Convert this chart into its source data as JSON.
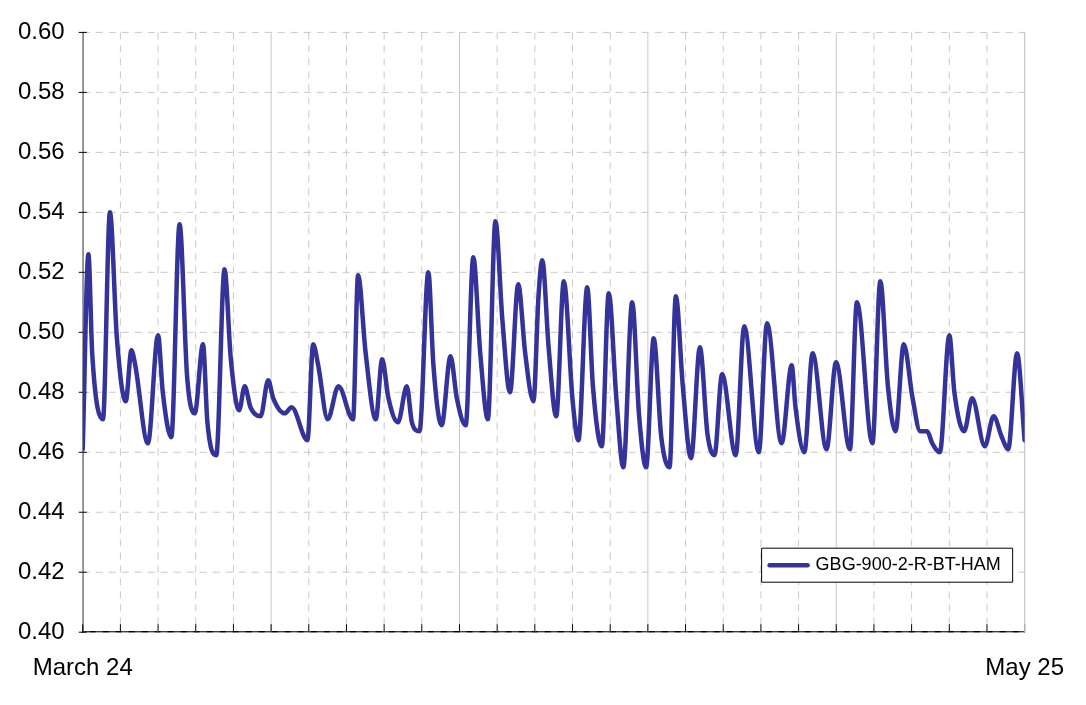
{
  "chart_data": {
    "type": "line",
    "x": [
      "--03-24T00:00",
      "--03-24T09:00",
      "--03-24T15:00",
      "--03-25T08:00",
      "--03-25T19:00",
      "--03-26T06:00",
      "--03-26T20:00",
      "--03-27T05:00",
      "--03-27T11:00",
      "--03-28T07:00",
      "--03-28T23:00",
      "--03-29T06:30",
      "--03-29T20:00",
      "--03-30T09:00",
      "--03-30T21:00",
      "--03-31T09:00",
      "--03-31T22:00",
      "--04-01T05:00",
      "--04-01T19:00",
      "--04-02T08:00",
      "--04-02T18:00",
      "--04-03T07:00",
      "--04-03T16:00",
      "--04-04T01:00",
      "--04-04T17:00",
      "--04-05T05:00",
      "--04-05T13:00",
      "--04-06T07:00",
      "--04-06T18:00",
      "--04-07T19:00",
      "--04-08T04:00",
      "--04-08T12:00",
      "--04-09T03:00",
      "--04-09T20:00",
      "--04-10T19:00",
      "--04-11T03:00",
      "--04-11T15:00",
      "--04-12T07:00",
      "--04-12T17:00",
      "--04-13T03:00",
      "--04-13T18:00",
      "--04-14T08:00",
      "--04-14T16:00",
      "--04-15T04:00",
      "--04-15T18:00",
      "--04-16T02:00",
      "--04-16T15:00",
      "--04-17T05:00",
      "--04-17T15:00",
      "--04-18T05:00",
      "--04-18T17:00",
      "--04-19T04:00",
      "--04-19T16:00",
      "--04-20T04:00",
      "--04-20T15:00",
      "--04-21T03:00",
      "--04-21T16:00",
      "--04-22T03:00",
      "--04-22T16:00",
      "--04-23T00:00",
      "--04-23T06:00",
      "--04-23T16:00",
      "--04-24T04:00",
      "--04-24T16:00",
      "--04-25T06:00",
      "--04-25T15:00",
      "--04-26T05:00",
      "--04-26T14:00",
      "--04-27T04:00",
      "--04-27T15:00",
      "--04-28T03:00",
      "--04-28T14:00",
      "--04-29T04:00",
      "--04-29T15:00",
      "--04-30T02:00",
      "--04-30T14:00",
      "--05-01T02:00",
      "--05-01T15:00",
      "--05-02T01:00",
      "--05-02T12:00",
      "--05-03T01:00",
      "--05-03T15:00",
      "--05-04T03:00",
      "--05-04T14:00",
      "--05-05T02:00",
      "--05-05T23:30",
      "--05-06T13:00",
      "--05-07T12:00",
      "--05-08T01:00",
      "--05-09T00:00",
      "--05-09T16:00",
      "--05-09T22:00",
      "--05-10T12:00",
      "--05-11T01:00",
      "--05-11T23:00",
      "--05-12T14:00",
      "--05-13T12:00",
      "--05-13T23:00",
      "--05-14T23:30",
      "--05-15T12:00",
      "--05-16T00:00",
      "--05-16T12:00",
      "--05-17T01:00",
      "--05-17T15:00",
      "--05-18T03:00",
      "--05-18T14:00",
      "--05-18T22:00",
      "--05-19T10:00",
      "--05-20T01:00",
      "--05-20T09:00",
      "--05-21T00:30",
      "--05-21T13:00",
      "--05-22T09:00",
      "--05-22T23:00",
      "--05-23T12:00",
      "--05-23T22:00",
      "--05-24T12:00",
      "--05-25T00:00"
    ],
    "series": [
      {
        "name": "GBG-900-2-R-BT-HAM",
        "color": "#333399",
        "values": [
          0.461,
          0.526,
          0.493,
          0.471,
          0.54,
          0.498,
          0.477,
          0.494,
          0.489,
          0.463,
          0.499,
          0.48,
          0.465,
          0.536,
          0.485,
          0.473,
          0.496,
          0.47,
          0.459,
          0.521,
          0.491,
          0.474,
          0.482,
          0.475,
          0.472,
          0.484,
          0.478,
          0.473,
          0.475,
          0.464,
          0.496,
          0.489,
          0.471,
          0.482,
          0.471,
          0.519,
          0.493,
          0.471,
          0.491,
          0.478,
          0.47,
          0.482,
          0.47,
          0.467,
          0.52,
          0.489,
          0.469,
          0.492,
          0.478,
          0.469,
          0.525,
          0.493,
          0.471,
          0.537,
          0.504,
          0.48,
          0.516,
          0.493,
          0.477,
          0.512,
          0.524,
          0.495,
          0.472,
          0.517,
          0.477,
          0.464,
          0.515,
          0.482,
          0.462,
          0.513,
          0.478,
          0.455,
          0.51,
          0.472,
          0.455,
          0.498,
          0.465,
          0.455,
          0.512,
          0.482,
          0.458,
          0.495,
          0.466,
          0.459,
          0.486,
          0.459,
          0.502,
          0.46,
          0.503,
          0.463,
          0.489,
          0.475,
          0.46,
          0.493,
          0.461,
          0.49,
          0.461,
          0.51,
          0.463,
          0.517,
          0.482,
          0.467,
          0.496,
          0.478,
          0.467,
          0.467,
          0.463,
          0.46,
          0.499,
          0.48,
          0.467,
          0.478,
          0.462,
          0.472,
          0.465,
          0.461,
          0.493,
          0.464
        ]
      }
    ],
    "xlim": [
      "--03-24T00:00",
      "--05-25T00:00"
    ],
    "xticks": [
      {
        "value": "--03-24T00:00",
        "label": "March 24"
      },
      {
        "value": "--03-26T11:31",
        "label": null
      },
      {
        "value": "--03-28T23:02",
        "label": null
      },
      {
        "value": "--03-31T10:34",
        "label": null
      },
      {
        "value": "--04-02T22:05",
        "label": null
      },
      {
        "value": "--04-05T09:36",
        "label": null
      },
      {
        "value": "--04-07T21:07",
        "label": null
      },
      {
        "value": "--04-10T08:38",
        "label": null
      },
      {
        "value": "--04-12T20:10",
        "label": null
      },
      {
        "value": "--04-15T07:41",
        "label": null
      },
      {
        "value": "--04-17T19:12",
        "label": null
      },
      {
        "value": "--04-20T06:43",
        "label": null
      },
      {
        "value": "--04-22T18:14",
        "label": null
      },
      {
        "value": "--04-25T05:46",
        "label": null
      },
      {
        "value": "--04-27T17:17",
        "label": null
      },
      {
        "value": "--04-30T04:48",
        "label": null
      },
      {
        "value": "--05-02T16:19",
        "label": null
      },
      {
        "value": "--05-05T03:50",
        "label": null
      },
      {
        "value": "--05-07T15:22",
        "label": null
      },
      {
        "value": "--05-10T02:53",
        "label": null
      },
      {
        "value": "--05-12T14:24",
        "label": null
      },
      {
        "value": "--05-15T01:55",
        "label": null
      },
      {
        "value": "--05-17T13:26",
        "label": null
      },
      {
        "value": "--05-20T00:58",
        "label": null
      },
      {
        "value": "--05-22T12:29",
        "label": null
      },
      {
        "value": "--05-25T00:00",
        "label": "May 25"
      }
    ],
    "ylim": [
      0.4,
      0.6
    ],
    "yticks": [
      {
        "value": 0.4,
        "label": "0.40"
      },
      {
        "value": 0.42,
        "label": "0.42"
      },
      {
        "value": 0.44,
        "label": "0.44"
      },
      {
        "value": 0.46,
        "label": "0.46"
      },
      {
        "value": 0.48,
        "label": "0.48"
      },
      {
        "value": 0.5,
        "label": "0.50"
      },
      {
        "value": 0.52,
        "label": "0.52"
      },
      {
        "value": 0.54,
        "label": "0.54"
      },
      {
        "value": 0.56,
        "label": "0.56"
      },
      {
        "value": 0.58,
        "label": "0.58"
      },
      {
        "value": 0.6,
        "label": "0.60"
      }
    ],
    "grid": true,
    "legend": "bottom right",
    "marker": "none",
    "line_style": "solid"
  }
}
